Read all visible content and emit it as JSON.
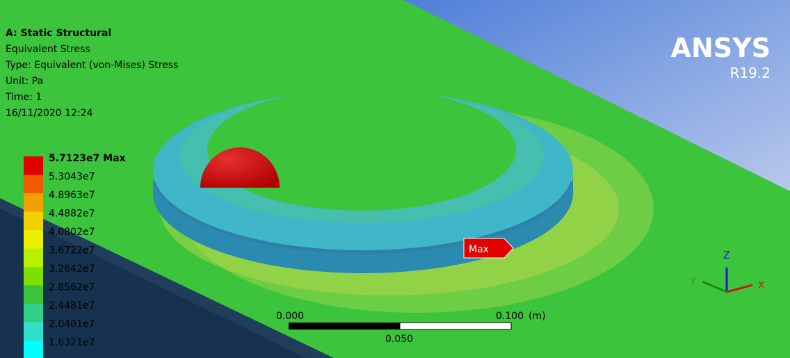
{
  "header": {
    "lines": [
      "A: Static Structural",
      "Equivalent Stress",
      "Type: Equivalent (von-Mises) Stress",
      "Unit: Pa",
      "Time: 1",
      "16/11/2020 12:24"
    ]
  },
  "legend": {
    "labels": [
      "5.7123e7 Max",
      "5.3043e7",
      "4.8963e7",
      "4.4882e7",
      "4.0802e7",
      "3.6722e7",
      "3.2642e7",
      "2.8562e7",
      "2.4481e7",
      "2.0401e7",
      "1.6321e7"
    ]
  },
  "logo": {
    "name": "ANSYS",
    "version": "R19.2"
  },
  "probe": {
    "label": "Max"
  },
  "scale_bar": {
    "start": "0.000",
    "end": "0.100",
    "unit": "(m)",
    "middle": "0.050"
  },
  "triad": {
    "z": "Z",
    "x": "X",
    "y": "Y"
  }
}
